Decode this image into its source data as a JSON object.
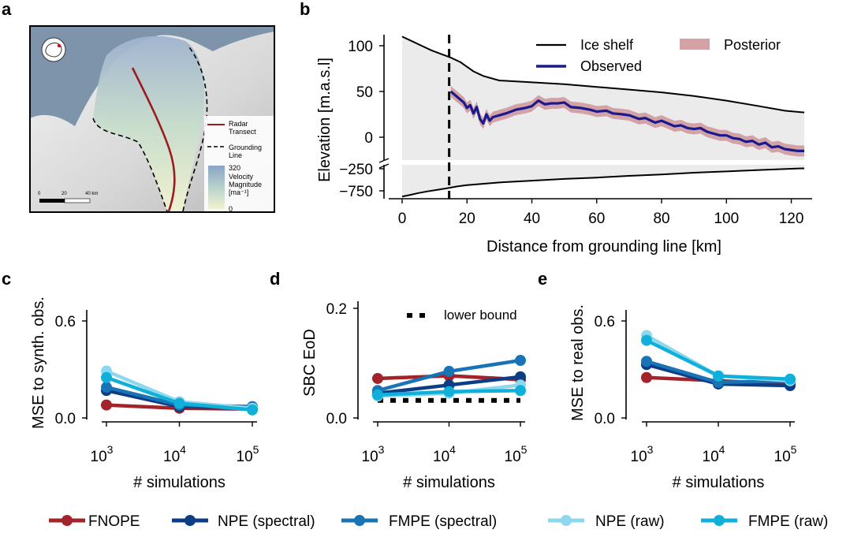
{
  "figure": {
    "panel_letters": [
      "a",
      "b",
      "c",
      "d",
      "e"
    ]
  },
  "map_panel": {
    "legend": {
      "radar_transect": "Radar\nTransect",
      "grounding_line": "Grounding\nLine",
      "velocity_max": "320",
      "velocity_label": "Velocity\nMagnitude\n[ma⁻¹]",
      "velocity_min": "0"
    },
    "scalebar": [
      "0",
      "20",
      "40 km"
    ],
    "colors": {
      "transect": "#9b1b1f",
      "ocean": "#7d94ab",
      "velocity_high": "#8aa3c8",
      "velocity_low": "#f0f3cf"
    }
  },
  "chart_data": [
    {
      "panel": "b",
      "type": "line",
      "xlabel": "Distance from grounding line [km]",
      "ylabel": "Elevation [m.a.s.l]",
      "x_ticks": [
        "0",
        "20",
        "40",
        "60",
        "80",
        "100",
        "120"
      ],
      "upper_y_ticks": [
        "100",
        "50",
        "0"
      ],
      "lower_y_ticks": [
        "−250",
        "−750"
      ],
      "xlim": [
        -3,
        131
      ],
      "upper_ylim": [
        -25,
        112
      ],
      "lower_ylim": [
        -900,
        -150
      ],
      "grounding_line_x": 14.5,
      "legend": [
        "Ice shelf",
        "Observed",
        "Posterior"
      ],
      "colors": {
        "ice_shelf": "#000000",
        "observed": "#1a1a8c",
        "posterior": "#c98a8f",
        "fill": "#ebebeb"
      },
      "ice_surface": {
        "x": [
          0,
          3,
          6,
          9,
          12,
          15,
          18,
          20,
          22,
          25,
          30,
          40,
          50,
          60,
          70,
          80,
          90,
          100,
          110,
          118,
          124
        ],
        "y": [
          110,
          105,
          100,
          95,
          91,
          87,
          82,
          77,
          72,
          67,
          62,
          60,
          58,
          55,
          52,
          49,
          45,
          40,
          34,
          29,
          27
        ]
      },
      "ice_base": {
        "x": [
          0,
          2,
          5,
          8,
          11,
          14,
          17,
          20,
          30,
          40,
          50,
          60,
          70,
          80,
          90,
          100,
          110,
          120,
          124
        ],
        "y": [
          -880,
          -850,
          -800,
          -760,
          -725,
          -690,
          -650,
          -620,
          -560,
          -520,
          -480,
          -450,
          -410,
          -380,
          -340,
          -310,
          -280,
          -250,
          -240
        ]
      },
      "observed": {
        "x": [
          15,
          17,
          19,
          20,
          21,
          22,
          23,
          24,
          25,
          26,
          27,
          28,
          30,
          32,
          35,
          38,
          40,
          42,
          44,
          46,
          48,
          50,
          52,
          55,
          58,
          60,
          63,
          65,
          68,
          70,
          73,
          75,
          78,
          80,
          82,
          84,
          86,
          88,
          90,
          92,
          94,
          96,
          98,
          100,
          102,
          104,
          106,
          108,
          110,
          112,
          114,
          116,
          118,
          120,
          122,
          124
        ],
        "y": [
          50,
          44,
          38,
          32,
          35,
          26,
          33,
          20,
          15,
          25,
          18,
          22,
          24,
          26,
          30,
          32,
          34,
          40,
          36,
          37,
          37,
          38,
          33,
          32,
          30,
          28,
          29,
          26,
          25,
          24,
          20,
          21,
          16,
          18,
          15,
          12,
          13,
          10,
          9,
          10,
          6,
          4,
          2,
          2,
          -1,
          -2,
          -5,
          -4,
          -8,
          -6,
          -11,
          -10,
          -13,
          -14,
          -15,
          -15
        ]
      },
      "posterior_halfwidth": 6
    },
    {
      "panel": "c",
      "type": "line",
      "xlabel": "# simulations",
      "ylabel": "MSE to synth. obs.",
      "x_ticks": [
        "10",
        "10",
        "10"
      ],
      "x_tick_exponents": [
        "3",
        "4",
        "5"
      ],
      "y_ticks": [
        "0.6",
        "0.0"
      ],
      "ylim": [
        -0.02,
        0.7
      ],
      "x": [
        3,
        4,
        5
      ],
      "series": [
        {
          "name": "FNOPE",
          "values": [
            0.08,
            0.06,
            0.055
          ]
        },
        {
          "name": "NPE (spectral)",
          "values": [
            0.17,
            0.07,
            0.065
          ]
        },
        {
          "name": "FMPE (spectral)",
          "values": [
            0.19,
            0.08,
            0.07
          ]
        },
        {
          "name": "NPE (raw)",
          "values": [
            0.29,
            0.1,
            0.06
          ]
        },
        {
          "name": "FMPE (raw)",
          "values": [
            0.25,
            0.09,
            0.05
          ]
        }
      ]
    },
    {
      "panel": "d",
      "type": "line",
      "xlabel": "# simulations",
      "ylabel": "SBC EoD",
      "x_ticks": [
        "10",
        "10",
        "10"
      ],
      "x_tick_exponents": [
        "3",
        "4",
        "5"
      ],
      "y_ticks": [
        "0.2",
        "0.0"
      ],
      "ylim": [
        0,
        0.2
      ],
      "x": [
        3,
        4,
        5
      ],
      "lower_bound_label": "lower bound",
      "lower_bound": 0.032,
      "series": [
        {
          "name": "FNOPE",
          "values": [
            0.072,
            0.077,
            0.07
          ]
        },
        {
          "name": "NPE (spectral)",
          "values": [
            0.045,
            0.06,
            0.075
          ]
        },
        {
          "name": "FMPE (spectral)",
          "values": [
            0.05,
            0.085,
            0.105
          ]
        },
        {
          "name": "NPE (raw)",
          "values": [
            0.04,
            0.045,
            0.06
          ]
        },
        {
          "name": "FMPE (raw)",
          "values": [
            0.042,
            0.048,
            0.05
          ]
        }
      ]
    },
    {
      "panel": "e",
      "type": "line",
      "xlabel": "# simulations",
      "ylabel": "MSE to real obs.",
      "x_ticks": [
        "10",
        "10",
        "10"
      ],
      "x_tick_exponents": [
        "3",
        "4",
        "5"
      ],
      "y_ticks": [
        "0.6",
        "0.0"
      ],
      "ylim": [
        -0.02,
        0.7
      ],
      "x": [
        3,
        4,
        5
      ],
      "series": [
        {
          "name": "FNOPE",
          "values": [
            0.25,
            0.23,
            0.21
          ]
        },
        {
          "name": "NPE (spectral)",
          "values": [
            0.33,
            0.21,
            0.2
          ]
        },
        {
          "name": "FMPE (spectral)",
          "values": [
            0.35,
            0.22,
            0.23
          ]
        },
        {
          "name": "NPE (raw)",
          "values": [
            0.51,
            0.26,
            0.23
          ]
        },
        {
          "name": "FMPE (raw)",
          "values": [
            0.48,
            0.26,
            0.24
          ]
        }
      ]
    }
  ],
  "shared_legend": [
    {
      "name": "FNOPE",
      "color": "#a3232a"
    },
    {
      "name": "NPE (spectral)",
      "color": "#0d3d85"
    },
    {
      "name": "FMPE (spectral)",
      "color": "#1874b5"
    },
    {
      "name": "NPE (raw)",
      "color": "#8ed8ef"
    },
    {
      "name": "FMPE (raw)",
      "color": "#10b0da"
    }
  ]
}
